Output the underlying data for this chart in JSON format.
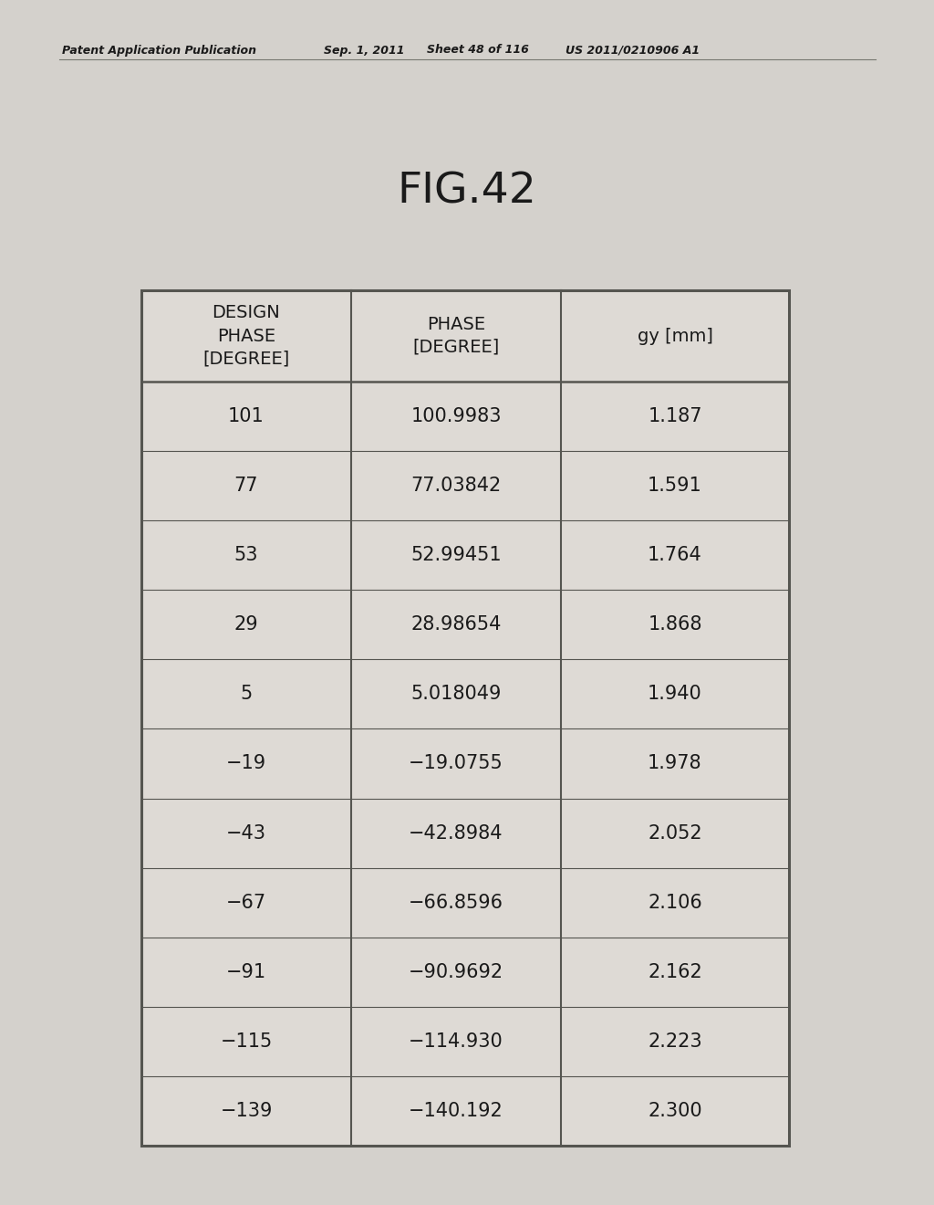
{
  "header_text": "Patent Application Publication",
  "header_date": "Sep. 1, 2011",
  "header_sheet": "Sheet 48 of 116",
  "header_patent": "US 2011/0210906 A1",
  "fig_title": "FIG.42",
  "col_headers": [
    "DESIGN\nPHASE\n[DEGREE]",
    "PHASE\n[DEGREE]",
    "gy [mm]"
  ],
  "rows": [
    [
      "101",
      "100.9983",
      "1.187"
    ],
    [
      "77",
      "77.03842",
      "1.591"
    ],
    [
      "53",
      "52.99451",
      "1.764"
    ],
    [
      "29",
      "28.98654",
      "1.868"
    ],
    [
      "5",
      "5.018049",
      "1.940"
    ],
    [
      "−19",
      "−19.0755",
      "1.978"
    ],
    [
      "−43",
      "−42.8984",
      "2.052"
    ],
    [
      "−67",
      "−66.8596",
      "2.106"
    ],
    [
      "−91",
      "−90.9692",
      "2.162"
    ],
    [
      "−115",
      "−114.930",
      "2.223"
    ],
    [
      "−139",
      "−140.192",
      "2.300"
    ]
  ],
  "bg_color": "#d8d5d0",
  "table_bg": "#dedad5",
  "header_bg": "#ccc9c4",
  "text_color": "#1a1a1a",
  "border_color": "#555550",
  "page_bg": "#d4d1cc"
}
